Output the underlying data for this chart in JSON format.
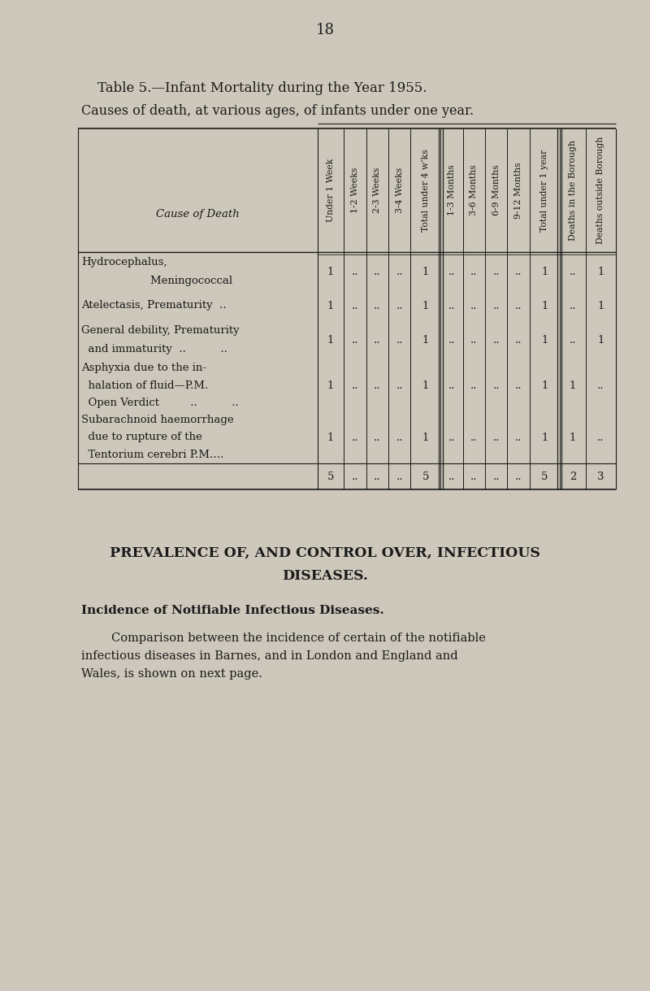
{
  "page_number": "18",
  "title_line1": "Table 5.",
  "title_line2": "—Infant Mortality during the Year 1955.",
  "title_full": "Table 5.—Infant Mortality during the Year 1955.",
  "subtitle": "Causes of death, at various ages, of infants under one year.",
  "bg_color": "#cdc8bb",
  "text_color": "#1a1a1a",
  "col_headers": [
    "Under 1 Week",
    "1-2 Weeks",
    "2-3 Weeks",
    "3-4 Weeks",
    "Total under 4 w’ks",
    "1-3 Months",
    "3-6 Months",
    "6-9 Months",
    "9-12 Months",
    "Total under 1 year",
    "Deaths in the Borough",
    "Deaths outside Borough"
  ],
  "row_label_header": "Cause of Death",
  "rows": [
    {
      "label_lines": [
        "Hydrocephalus,",
        "                    Meningococcal"
      ],
      "values": [
        "1",
        "..",
        "..",
        "..",
        "1",
        "..",
        "..",
        "..",
        "..",
        "1",
        "..",
        "1"
      ],
      "num_lines": 2
    },
    {
      "label_lines": [
        "Atelectasis, Prematurity  .."
      ],
      "values": [
        "1",
        "..",
        "..",
        "..",
        "1",
        "..",
        "..",
        "..",
        "..",
        "1",
        "..",
        "1"
      ],
      "num_lines": 1
    },
    {
      "label_lines": [
        "General debility, Prematurity",
        "  and immaturity  ..          .."
      ],
      "values": [
        "1",
        "..",
        "..",
        "..",
        "1",
        "..",
        "..",
        "..",
        "..",
        "1",
        "..",
        "1"
      ],
      "num_lines": 2
    },
    {
      "label_lines": [
        "Asphyxia due to the in-",
        "  halation of fluid—P.M.",
        "  Open Verdict         ..          .."
      ],
      "values": [
        "1",
        "..",
        "..",
        "..",
        "1",
        "..",
        "..",
        "..",
        "..",
        "1",
        "1",
        ".."
      ],
      "num_lines": 3
    },
    {
      "label_lines": [
        "Subarachnoid haemorrhage",
        "  due to rupture of the",
        "  Tentorium cerebri P.M.…"
      ],
      "values": [
        "1",
        "..",
        "..",
        "..",
        "1",
        "..",
        "..",
        "..",
        "..",
        "1",
        "1",
        ".."
      ],
      "num_lines": 3
    }
  ],
  "totals": [
    "5",
    "..",
    "..",
    "..",
    "5",
    "..",
    "..",
    "..",
    "..",
    "5",
    "2",
    "3"
  ],
  "section_title_line1": "PREVALENCE OF, AND CONTROL OVER, INFECTIOUS",
  "section_title_line2": "DISEASES.",
  "section_subtitle": "Incidence of Notifiable Infectious Diseases.",
  "body_line1": "        Comparison between the incidence of certain of the notifiable",
  "body_line2": "infectious diseases in Barnes, and in London and England and",
  "body_line3": "Wales, is shown on next page."
}
